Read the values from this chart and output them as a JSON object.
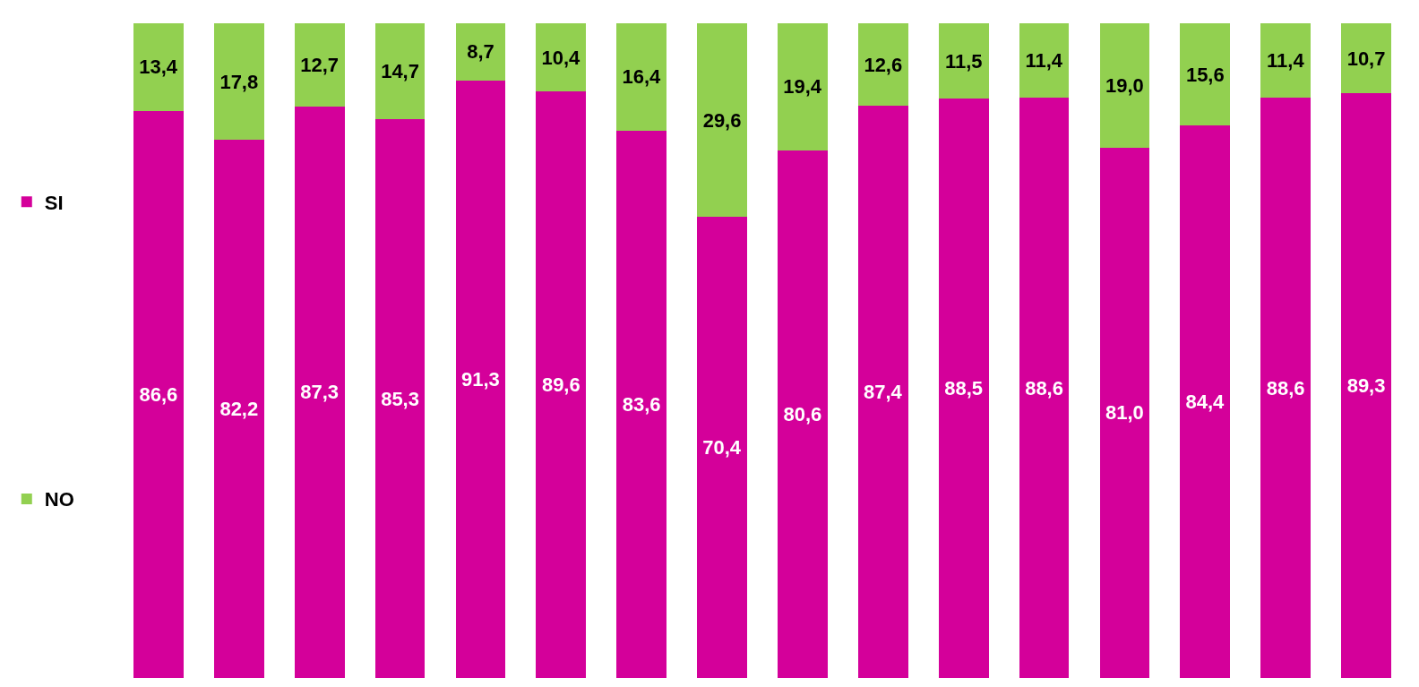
{
  "chart_data": {
    "type": "bar",
    "stacked": true,
    "categories": [
      null,
      null,
      null,
      null,
      null,
      null,
      null,
      null,
      null,
      null,
      null,
      null,
      null,
      null,
      null,
      null
    ],
    "series": [
      {
        "name": "SI",
        "color": "#d4009a",
        "values": [
          86.6,
          82.2,
          87.3,
          85.3,
          91.3,
          89.6,
          83.6,
          70.4,
          80.6,
          87.4,
          88.5,
          88.6,
          81.0,
          84.4,
          88.6,
          89.3
        ],
        "value_labels": [
          "86,6",
          "82,2",
          "87,3",
          "85,3",
          "91,3",
          "89,6",
          "83,6",
          "70,4",
          "80,6",
          "87,4",
          "88,5",
          "88,6",
          "81,0",
          "84,4",
          "88,6",
          "89,3"
        ]
      },
      {
        "name": "NO",
        "color": "#92d050",
        "values": [
          13.4,
          17.8,
          12.7,
          14.7,
          8.7,
          10.4,
          16.4,
          29.6,
          19.4,
          12.6,
          11.5,
          11.4,
          19.0,
          15.6,
          11.4,
          10.7
        ],
        "value_labels": [
          "13,4",
          "17,8",
          "12,7",
          "14,7",
          "8,7",
          "10,4",
          "16,4",
          "29,6",
          "19,4",
          "12,6",
          "11,5",
          "11,4",
          "19,0",
          "15,6",
          "11,4",
          "10,7"
        ]
      }
    ],
    "legend": "left",
    "tick_labels": false
  }
}
